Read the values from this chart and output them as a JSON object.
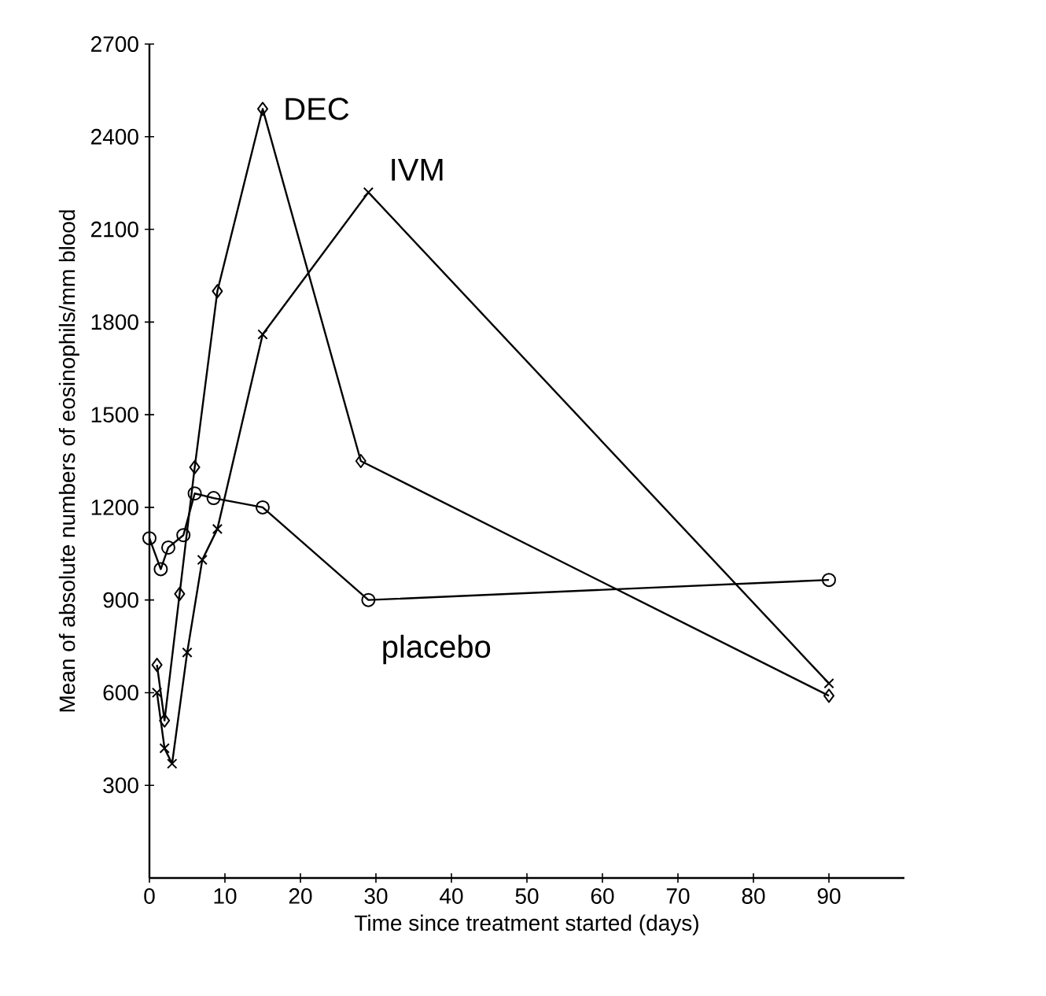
{
  "chart_data": {
    "type": "line",
    "xlabel": "Time since treatment started (days)",
    "ylabel": "Mean of absolute numbers of eosinophils/mm blood",
    "xlim": [
      0,
      100
    ],
    "ylim": [
      0,
      2700
    ],
    "xticks": [
      0,
      10,
      20,
      30,
      40,
      50,
      60,
      70,
      80,
      90
    ],
    "yticks": [
      300,
      600,
      900,
      1200,
      1500,
      1800,
      2100,
      2400,
      2700
    ],
    "grid": false,
    "series": [
      {
        "name": "DEC",
        "color": "#000000",
        "marker": "diamond",
        "x": [
          1,
          2,
          4,
          6,
          9,
          15,
          28,
          90
        ],
        "values": [
          690,
          510,
          920,
          1330,
          1900,
          2490,
          1350,
          590
        ]
      },
      {
        "name": "IVM",
        "color": "#000000",
        "marker": "cross",
        "x": [
          1,
          2,
          3,
          5,
          7,
          9,
          15,
          29,
          90
        ],
        "values": [
          600,
          420,
          370,
          730,
          1030,
          1130,
          1760,
          2220,
          630
        ]
      },
      {
        "name": "placebo",
        "color": "#000000",
        "marker": "circle",
        "x": [
          0,
          1.5,
          2.5,
          4.5,
          6,
          8.5,
          15,
          29,
          90
        ],
        "values": [
          1100,
          1000,
          1070,
          1110,
          1245,
          1230,
          1200,
          900,
          965
        ]
      }
    ]
  }
}
